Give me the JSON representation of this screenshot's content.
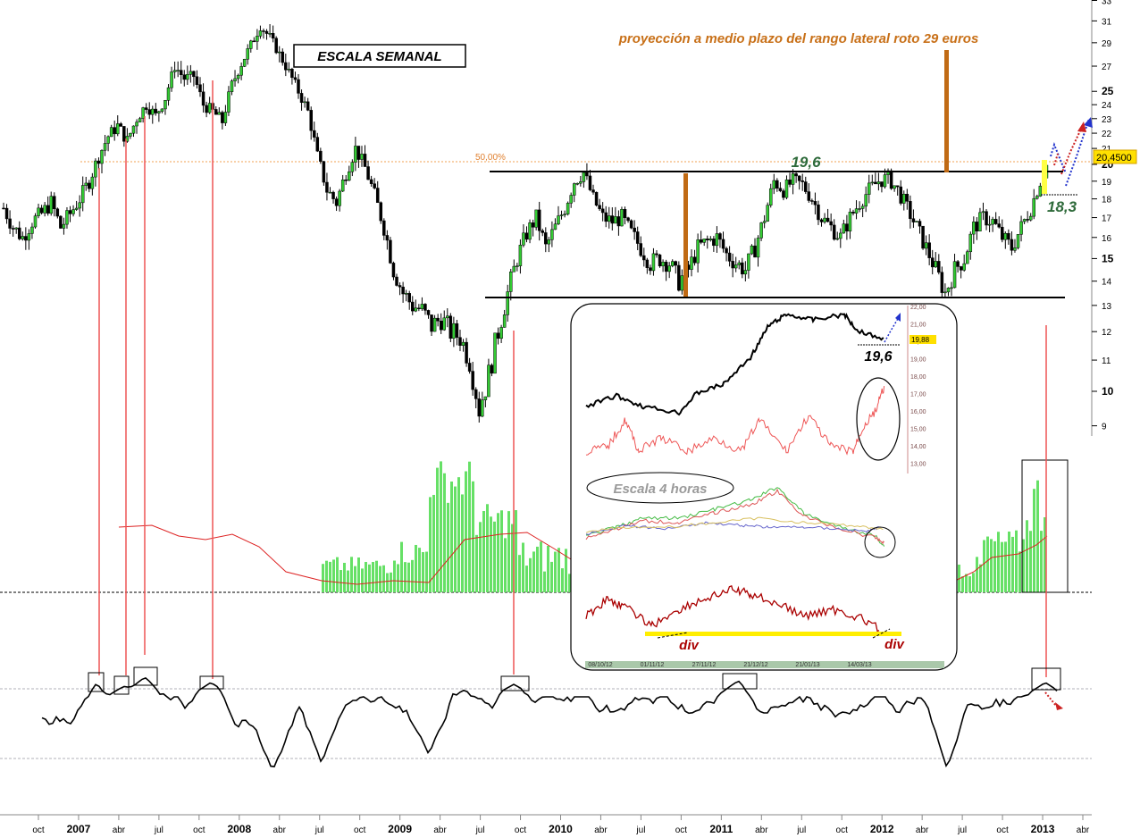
{
  "chart_data": [
    {
      "type": "candlestick",
      "panel": "price",
      "series_name": "",
      "ylim": [
        9,
        33
      ],
      "y_scale": "log",
      "y_ticks": [
        9,
        10,
        11,
        12,
        13,
        14,
        15,
        16,
        17,
        18,
        19,
        20,
        21,
        22,
        23,
        24,
        25,
        27,
        29,
        31,
        33
      ],
      "bold_y_ticks": [
        10,
        15,
        20,
        25
      ],
      "last_price_label": "20,4500",
      "fib_label": "50,00%",
      "fib_level": 20.3,
      "x_ticks": [
        "oct",
        "2007",
        "abr",
        "jul",
        "oct",
        "2008",
        "abr",
        "jul",
        "oct",
        "2009",
        "abr",
        "jul",
        "oct",
        "2010",
        "abr",
        "jul",
        "oct",
        "2011",
        "abr",
        "jul",
        "oct",
        "2012",
        "abr",
        "jul",
        "oct",
        "2013",
        "abr"
      ],
      "bold_x_ticks": [
        "2007",
        "2008",
        "2009",
        "2010",
        "2011",
        "2012",
        "2013"
      ],
      "closes": [
        17.5,
        16.5,
        16.0,
        16.8,
        17.2,
        17.8,
        16.5,
        17.2,
        18.0,
        19.0,
        20.5,
        21.8,
        22.5,
        21.5,
        23.0,
        24.0,
        23.2,
        24.5,
        27.0,
        26.0,
        26.2,
        24.0,
        23.5,
        22.8,
        25.5,
        27.2,
        28.8,
        30.5,
        29.5,
        28.0,
        26.5,
        25.0,
        23.5,
        20.5,
        18.5,
        17.8,
        19.5,
        21.0,
        19.8,
        18.2,
        16.5,
        14.5,
        13.5,
        13.0,
        12.8,
        12.2,
        12.5,
        12.0,
        11.8,
        11.0,
        9.5,
        10.5,
        12.0,
        13.5,
        15.0,
        16.2,
        17.0,
        15.5,
        16.5,
        17.5,
        19.0,
        19.5,
        18.0,
        17.0,
        16.8,
        17.0,
        16.2,
        15.5,
        14.8,
        15.0,
        14.8,
        14.0,
        14.5,
        15.5,
        15.8,
        16.0,
        15.2,
        14.8,
        14.5,
        15.5,
        17.0,
        19.0,
        18.5,
        19.0,
        18.8,
        18.0,
        17.0,
        16.5,
        16.0,
        17.0,
        17.8,
        18.5,
        19.0,
        19.2,
        18.5,
        17.5,
        16.5,
        15.5,
        14.5,
        13.5,
        14.5,
        15.0,
        16.5,
        17.0,
        16.8,
        16.0,
        15.5,
        16.5,
        17.5,
        19.0,
        20.4
      ],
      "annotations": {
        "title_box": "ESCALA SEMANAL",
        "projection": "proyección a medio plazo del rango lateral roto 29 euros",
        "resistance": "19,6",
        "support": "18,3",
        "range_top": 19.6,
        "range_bottom": 13.5,
        "support_level": 18.3
      }
    },
    {
      "type": "bar",
      "panel": "volume",
      "series_name": "",
      "colors": {
        "bars": "#66e066",
        "ma": "#dd2222"
      }
    },
    {
      "type": "line",
      "panel": "oscillator",
      "series_name": "",
      "color": "#000000"
    },
    {
      "type": "line",
      "panel": "inset",
      "inset_title": "Escala 4 horas",
      "price_label": "19,6",
      "div_label": "div",
      "last_label": "19,88",
      "y_ticks": [
        "22,00",
        "21,00",
        "20,00",
        "19,00",
        "18,00",
        "17,00",
        "16,00",
        "15,00",
        "14,00",
        "13,00"
      ],
      "x_ticks": [
        "08/10/12",
        "01/11/12",
        "27/11/12",
        "21/12/12",
        "21/01/13",
        "14/03/13"
      ]
    }
  ]
}
